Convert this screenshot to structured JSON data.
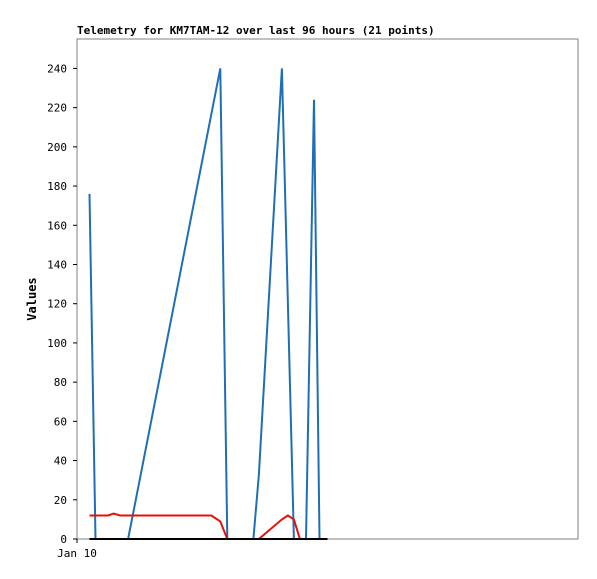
{
  "chart_data": {
    "type": "line",
    "title": "Telemetry for KM7TAM-12 over last 96 hours (21 points)",
    "ylabel": "Values",
    "xlabel": "",
    "ylim": [
      0,
      255
    ],
    "yticks": [
      0,
      20,
      40,
      60,
      80,
      100,
      120,
      140,
      160,
      180,
      200,
      220,
      240
    ],
    "x_tick_labels": [
      {
        "label": "Jan 10",
        "x": 0.0
      }
    ],
    "x_range": [
      0.0,
      10.0
    ],
    "grid": false,
    "legend": "none",
    "series": [
      {
        "color": "#1f6fb5",
        "x": [
          0.25,
          0.37,
          1.02,
          2.86,
          3.0,
          3.52,
          3.63,
          4.09,
          4.33,
          4.57,
          4.73,
          4.84,
          4.95,
          5.0
        ],
        "y": [
          176,
          0,
          0,
          240,
          0,
          0,
          33,
          240,
          0,
          0,
          224,
          0,
          0,
          0
        ]
      },
      {
        "color": "#e8100a",
        "x": [
          0.25,
          0.62,
          0.73,
          0.86,
          2.68,
          2.86,
          3.0,
          3.63,
          4.09,
          4.21,
          4.33,
          4.45,
          4.57,
          5.0
        ],
        "y": [
          12,
          12,
          13,
          12,
          12,
          9,
          0,
          0,
          10,
          12,
          10,
          0,
          0,
          0
        ]
      },
      {
        "color": "#000000",
        "x": [
          0.25,
          5.0
        ],
        "y": [
          0,
          0
        ]
      }
    ]
  }
}
